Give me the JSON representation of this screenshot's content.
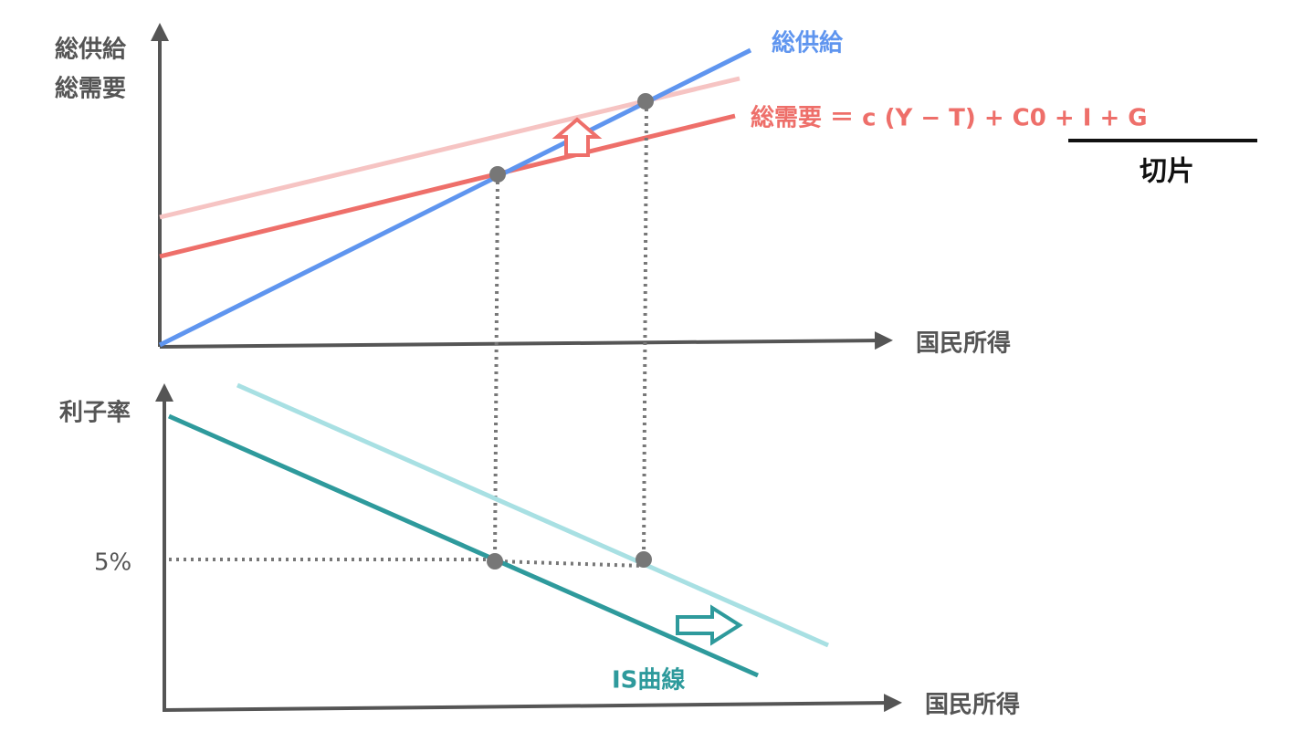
{
  "top_panel": {
    "y_axis_label": [
      "総供給",
      "総需要"
    ],
    "x_axis_label": "国民所得",
    "supply_label": "総供給",
    "demand_formula": "総需要 ＝ c (Y − T) + C0 + I + G",
    "intercept_label": "切片"
  },
  "bottom_panel": {
    "y_axis_label": "利子率",
    "x_axis_label": "国民所得",
    "rate_label": "5%",
    "curve_label": "IS曲線"
  }
}
